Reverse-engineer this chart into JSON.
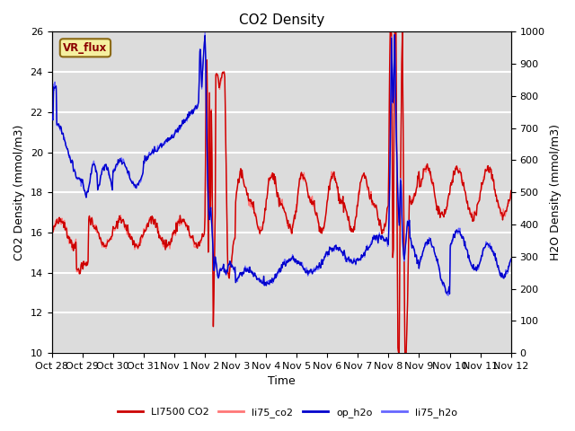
{
  "title": "CO2 Density",
  "xlabel": "Time",
  "ylabel_left": "CO2 Density (mmol/m3)",
  "ylabel_right": "H2O Density (mmol/m3)",
  "ylim_left": [
    10,
    26
  ],
  "ylim_right": [
    0,
    1000
  ],
  "yticks_left": [
    10,
    12,
    14,
    16,
    18,
    20,
    22,
    24,
    26
  ],
  "yticks_right": [
    0,
    100,
    200,
    300,
    400,
    500,
    600,
    700,
    800,
    900,
    1000
  ],
  "xtick_labels": [
    "Oct 28",
    "Oct 29",
    "Oct 30",
    "Oct 31",
    "Nov 1",
    "Nov 2",
    "Nov 3",
    "Nov 4",
    "Nov 5",
    "Nov 6",
    "Nov 7",
    "Nov 8",
    "Nov 9",
    "Nov 10",
    "Nov 11",
    "Nov 12"
  ],
  "legend_labels": [
    "LI7500 CO2",
    "li75_co2",
    "op_h2o",
    "li75_h2o"
  ],
  "co2_color1": "#cc0000",
  "co2_color2": "#ff7777",
  "h2o_color1": "#0000cc",
  "h2o_color2": "#6666ff",
  "plot_bg_color": "#dcdcdc",
  "grid_color": "white",
  "annotation_text": "VR_flux",
  "annotation_bg": "#f5f0a0",
  "annotation_border": "#8b6914"
}
